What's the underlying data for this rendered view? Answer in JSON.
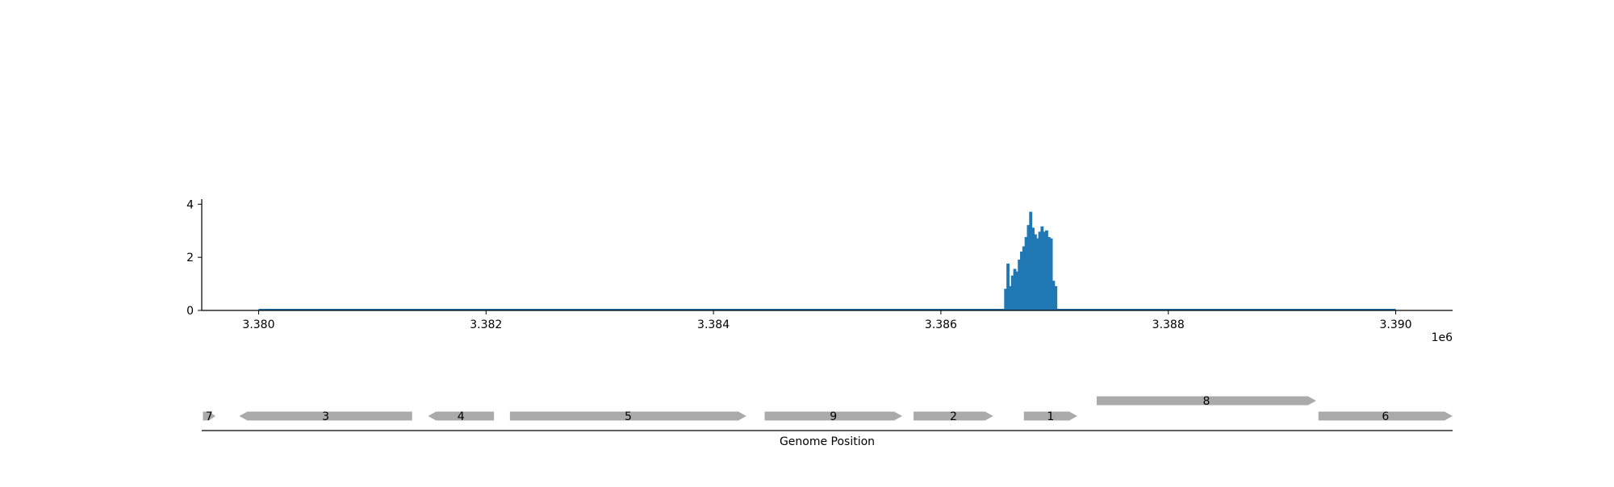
{
  "chart_data": [
    {
      "type": "area",
      "title": "",
      "xlabel": "",
      "ylabel": "",
      "x_offset_label": "1e6",
      "xlim": [
        3379500,
        3390500
      ],
      "ylim": [
        0,
        4.1
      ],
      "x_ticks": [
        3380000,
        3382000,
        3384000,
        3386000,
        3388000,
        3390000
      ],
      "x_tick_labels": [
        "3.380",
        "3.382",
        "3.384",
        "3.386",
        "3.388",
        "3.390"
      ],
      "y_ticks": [
        0,
        2,
        4
      ],
      "y_tick_labels": [
        "0",
        "2",
        "4"
      ],
      "grid": false,
      "color": "#1f77b4",
      "baseline_range": [
        3380000,
        3390000
      ],
      "x": [
        3386560,
        3386580,
        3386600,
        3386620,
        3386640,
        3386660,
        3386680,
        3386700,
        3386720,
        3386740,
        3386760,
        3386780,
        3386800,
        3386820,
        3386840,
        3386860,
        3386880,
        3386900,
        3386920,
        3386940,
        3386960,
        3386980,
        3387000
      ],
      "y": [
        0.8,
        1.75,
        0.9,
        1.3,
        1.55,
        1.45,
        1.9,
        2.2,
        2.4,
        2.75,
        3.2,
        3.7,
        3.1,
        2.85,
        2.7,
        2.95,
        3.15,
        2.95,
        3.0,
        2.75,
        2.7,
        1.1,
        0.9
      ]
    },
    {
      "type": "gene_track",
      "xlabel": "Genome Position",
      "color": "#aaaaaa",
      "genes": [
        {
          "label": "7",
          "start": 3379510,
          "end": 3379620,
          "strand": "+",
          "row": 0
        },
        {
          "label": "3",
          "start": 3379830,
          "end": 3381350,
          "strand": "-",
          "row": 0
        },
        {
          "label": "4",
          "start": 3381490,
          "end": 3382070,
          "strand": "-",
          "row": 0
        },
        {
          "label": "5",
          "start": 3382210,
          "end": 3384290,
          "strand": "+",
          "row": 0
        },
        {
          "label": "9",
          "start": 3384450,
          "end": 3385660,
          "strand": "+",
          "row": 0
        },
        {
          "label": "2",
          "start": 3385760,
          "end": 3386460,
          "strand": "+",
          "row": 0
        },
        {
          "label": "1",
          "start": 3386730,
          "end": 3387200,
          "strand": "+",
          "row": 0
        },
        {
          "label": "8",
          "start": 3387370,
          "end": 3389300,
          "strand": "+",
          "row": 1
        },
        {
          "label": "6",
          "start": 3389320,
          "end": 3390500,
          "strand": "+",
          "row": 0
        }
      ]
    }
  ]
}
